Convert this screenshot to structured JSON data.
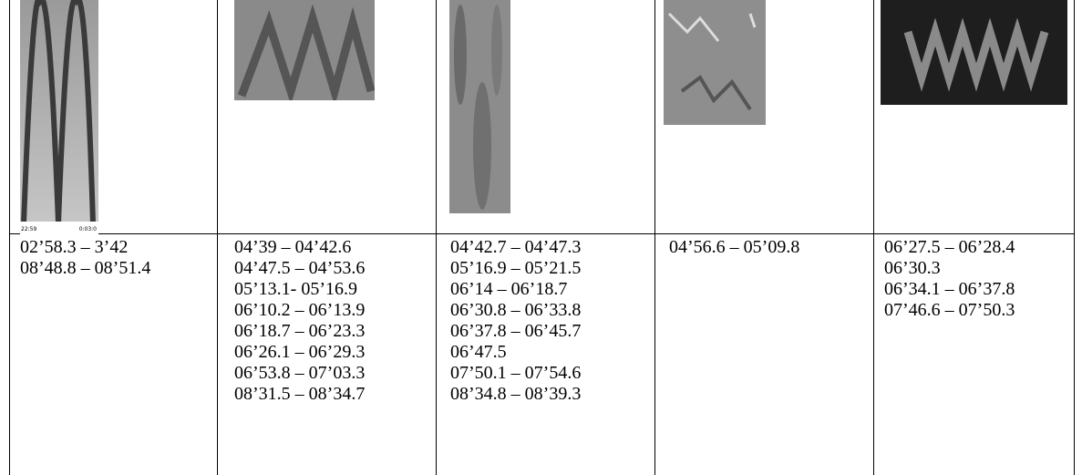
{
  "table": {
    "image_labels": [
      "22:59",
      "0:03:0"
    ],
    "cells": [
      [
        "02’58.3 – 3’42",
        "08’48.8 – 08’51.4"
      ],
      [
        "04’39 – 04’42.6",
        "04’47.5 – 04’53.6",
        "05’13.1- 05’16.9",
        "06’10.2 – 06’13.9",
        "06’18.7 – 06’23.3",
        "06’26.1 – 06’29.3",
        "06’53.8 – 07’03.3",
        "08’31.5 – 08’34.7"
      ],
      [
        "04’42.7 – 04’47.3",
        "05’16.9 – 05’21.5",
        "06’14 – 06’18.7",
        "06’30.8 – 06’33.8",
        "06’37.8 – 06’45.7",
        "06’47.5",
        "07’50.1 – 07’54.6",
        "08’34.8 – 08’39.3"
      ],
      [
        "04’56.6 – 05’09.8"
      ],
      [
        "06’27.5 – 06’28.4",
        "06’30.3",
        "06’34.1 – 06’37.8",
        "07’46.6 – 07’50.3"
      ]
    ]
  }
}
